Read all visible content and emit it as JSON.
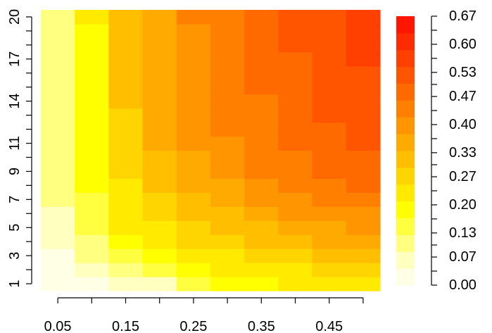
{
  "chart_data": {
    "type": "heatmap",
    "title": "",
    "xlabel": "",
    "ylabel": "",
    "x": [
      0.05,
      0.1,
      0.15,
      0.2,
      0.25,
      0.3,
      0.35,
      0.4,
      0.45,
      0.5
    ],
    "y": [
      1,
      2,
      3,
      4,
      5,
      6,
      7,
      8,
      9,
      10,
      11,
      12,
      13,
      14,
      15,
      16,
      17,
      18,
      19,
      20
    ],
    "x_tick_values": [
      0.05,
      0.15,
      0.25,
      0.35,
      0.45
    ],
    "x_tick_labels": [
      "0.05",
      "0.15",
      "0.25",
      "0.35",
      "0.45"
    ],
    "y_tick_values": [
      1,
      3,
      5,
      7,
      9,
      11,
      14,
      17,
      20
    ],
    "y_tick_labels": [
      "1",
      "3",
      "5",
      "7",
      "9",
      "11",
      "14",
      "17",
      "20"
    ],
    "zlim": [
      0,
      0.67
    ],
    "colorbar_tick_values": [
      0.0,
      0.07,
      0.13,
      0.2,
      0.27,
      0.33,
      0.4,
      0.47,
      0.53,
      0.6,
      0.67
    ],
    "colorbar_tick_labels": [
      "0.00",
      "0.07",
      "0.13",
      "0.20",
      "0.27",
      "0.33",
      "0.40",
      "0.47",
      "0.53",
      "0.60",
      "0.67"
    ],
    "colorbar_colors": [
      "#FFFFE6",
      "#FFFFBF",
      "#FFFF80",
      "#FFFF40",
      "#FFFF00",
      "#FFEA00",
      "#FFD500",
      "#FFBF00",
      "#FFAA00",
      "#FF9500",
      "#FF8000",
      "#FF6A00",
      "#FF5500",
      "#FF4000",
      "#FF2B00",
      "#FF1500"
    ],
    "z": [
      [
        0.01,
        0.04,
        0.06,
        0.08,
        0.13,
        0.17,
        0.19,
        0.21,
        0.22,
        0.22
      ],
      [
        0.03,
        0.08,
        0.12,
        0.16,
        0.2,
        0.22,
        0.24,
        0.25,
        0.26,
        0.27
      ],
      [
        0.04,
        0.1,
        0.16,
        0.2,
        0.23,
        0.25,
        0.27,
        0.29,
        0.3,
        0.31
      ],
      [
        0.06,
        0.12,
        0.19,
        0.23,
        0.26,
        0.28,
        0.3,
        0.32,
        0.34,
        0.35
      ],
      [
        0.07,
        0.14,
        0.21,
        0.25,
        0.29,
        0.31,
        0.33,
        0.35,
        0.37,
        0.38
      ],
      [
        0.08,
        0.15,
        0.23,
        0.27,
        0.31,
        0.33,
        0.36,
        0.38,
        0.4,
        0.41
      ],
      [
        0.09,
        0.16,
        0.24,
        0.29,
        0.33,
        0.35,
        0.38,
        0.41,
        0.43,
        0.44
      ],
      [
        0.1,
        0.17,
        0.25,
        0.3,
        0.34,
        0.37,
        0.4,
        0.43,
        0.45,
        0.47
      ],
      [
        0.1,
        0.18,
        0.27,
        0.32,
        0.36,
        0.39,
        0.42,
        0.45,
        0.47,
        0.49
      ],
      [
        0.11,
        0.18,
        0.28,
        0.33,
        0.37,
        0.4,
        0.43,
        0.46,
        0.48,
        0.5
      ],
      [
        0.11,
        0.19,
        0.28,
        0.34,
        0.38,
        0.41,
        0.44,
        0.47,
        0.49,
        0.51
      ],
      [
        0.11,
        0.19,
        0.29,
        0.35,
        0.39,
        0.42,
        0.45,
        0.48,
        0.5,
        0.52
      ],
      [
        0.12,
        0.19,
        0.29,
        0.35,
        0.39,
        0.42,
        0.46,
        0.49,
        0.51,
        0.53
      ],
      [
        0.12,
        0.2,
        0.3,
        0.36,
        0.4,
        0.43,
        0.46,
        0.49,
        0.52,
        0.53
      ],
      [
        0.12,
        0.2,
        0.3,
        0.36,
        0.4,
        0.43,
        0.47,
        0.5,
        0.52,
        0.54
      ],
      [
        0.12,
        0.2,
        0.3,
        0.37,
        0.41,
        0.44,
        0.47,
        0.5,
        0.52,
        0.54
      ],
      [
        0.12,
        0.2,
        0.31,
        0.37,
        0.41,
        0.44,
        0.47,
        0.5,
        0.53,
        0.55
      ],
      [
        0.12,
        0.2,
        0.31,
        0.37,
        0.41,
        0.44,
        0.48,
        0.51,
        0.53,
        0.55
      ],
      [
        0.12,
        0.2,
        0.31,
        0.37,
        0.41,
        0.45,
        0.48,
        0.51,
        0.53,
        0.55
      ],
      [
        0.12,
        0.21,
        0.31,
        0.37,
        0.42,
        0.45,
        0.48,
        0.51,
        0.53,
        0.55
      ]
    ],
    "grid": false,
    "legend": "right"
  }
}
